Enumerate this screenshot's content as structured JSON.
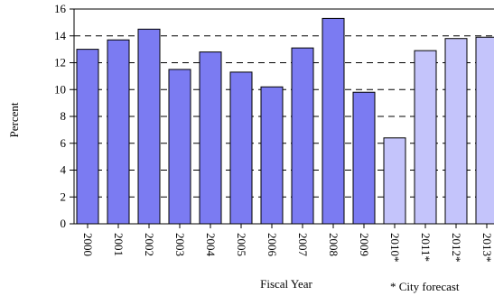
{
  "chart_data": {
    "type": "bar",
    "categories": [
      "2000",
      "2001",
      "2002",
      "2003",
      "2004",
      "2005",
      "2006",
      "2007",
      "2008",
      "2009",
      "2010*",
      "2011*",
      "2012*",
      "2013*"
    ],
    "values": [
      13.0,
      13.7,
      14.5,
      11.5,
      12.8,
      11.3,
      10.2,
      13.1,
      15.3,
      9.8,
      6.4,
      12.9,
      13.8,
      13.9
    ],
    "forecast": [
      false,
      false,
      false,
      false,
      false,
      false,
      false,
      false,
      false,
      false,
      true,
      true,
      true,
      true
    ],
    "xlabel": "Fiscal Year",
    "ylabel": "Percent",
    "ylim": [
      0,
      16
    ],
    "yticks": [
      0,
      2,
      4,
      6,
      8,
      10,
      12,
      14,
      16
    ],
    "grid": "horizontal dashed",
    "colors": {
      "actual": "#7b7bf2",
      "forecast": "#c4c4fb",
      "edge": "#000000"
    },
    "note": "* City forecast"
  }
}
